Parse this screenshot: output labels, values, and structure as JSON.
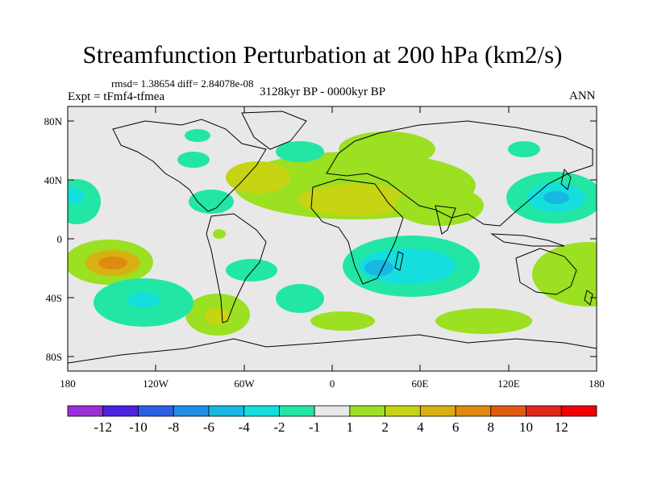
{
  "title": "Streamfunction Perturbation at 200 hPa (km2/s)",
  "stats_text": "rmsd= 1.38654 diff= 2.84078e-08",
  "experiment_text": "Expt = tFmf4-tfmea",
  "period_text": "3128kyr BP - 0000kyr BP",
  "season_text": "ANN",
  "lat_labels": [
    "80N",
    "40N",
    "0",
    "40S",
    "80S"
  ],
  "lon_labels": [
    "180",
    "120W",
    "60W",
    "0",
    "60E",
    "120E",
    "180"
  ],
  "colorbar": {
    "labels": [
      "-12",
      "-10",
      "-8",
      "-6",
      "-4",
      "-2",
      "-1",
      "1",
      "2",
      "4",
      "6",
      "8",
      "10",
      "12"
    ],
    "colors": [
      "#9b2fd6",
      "#4a22e0",
      "#2c5fe6",
      "#1f8fe8",
      "#18b8e2",
      "#14dede",
      "#22e6a6",
      "#e8e8e8",
      "#9be021",
      "#c6d414",
      "#d9b012",
      "#e08a10",
      "#e05a12",
      "#e0281a",
      "#f00000"
    ]
  },
  "colors": {
    "neutral": "#e8e8e8",
    "green": "#9be021",
    "yellow": "#c6d414",
    "gold": "#d9b012",
    "orange": "#e08a10",
    "red": "#e0281a",
    "teal": "#22e6a6",
    "cyan": "#14dede",
    "sky": "#18b8e2",
    "coast": "#000000"
  }
}
